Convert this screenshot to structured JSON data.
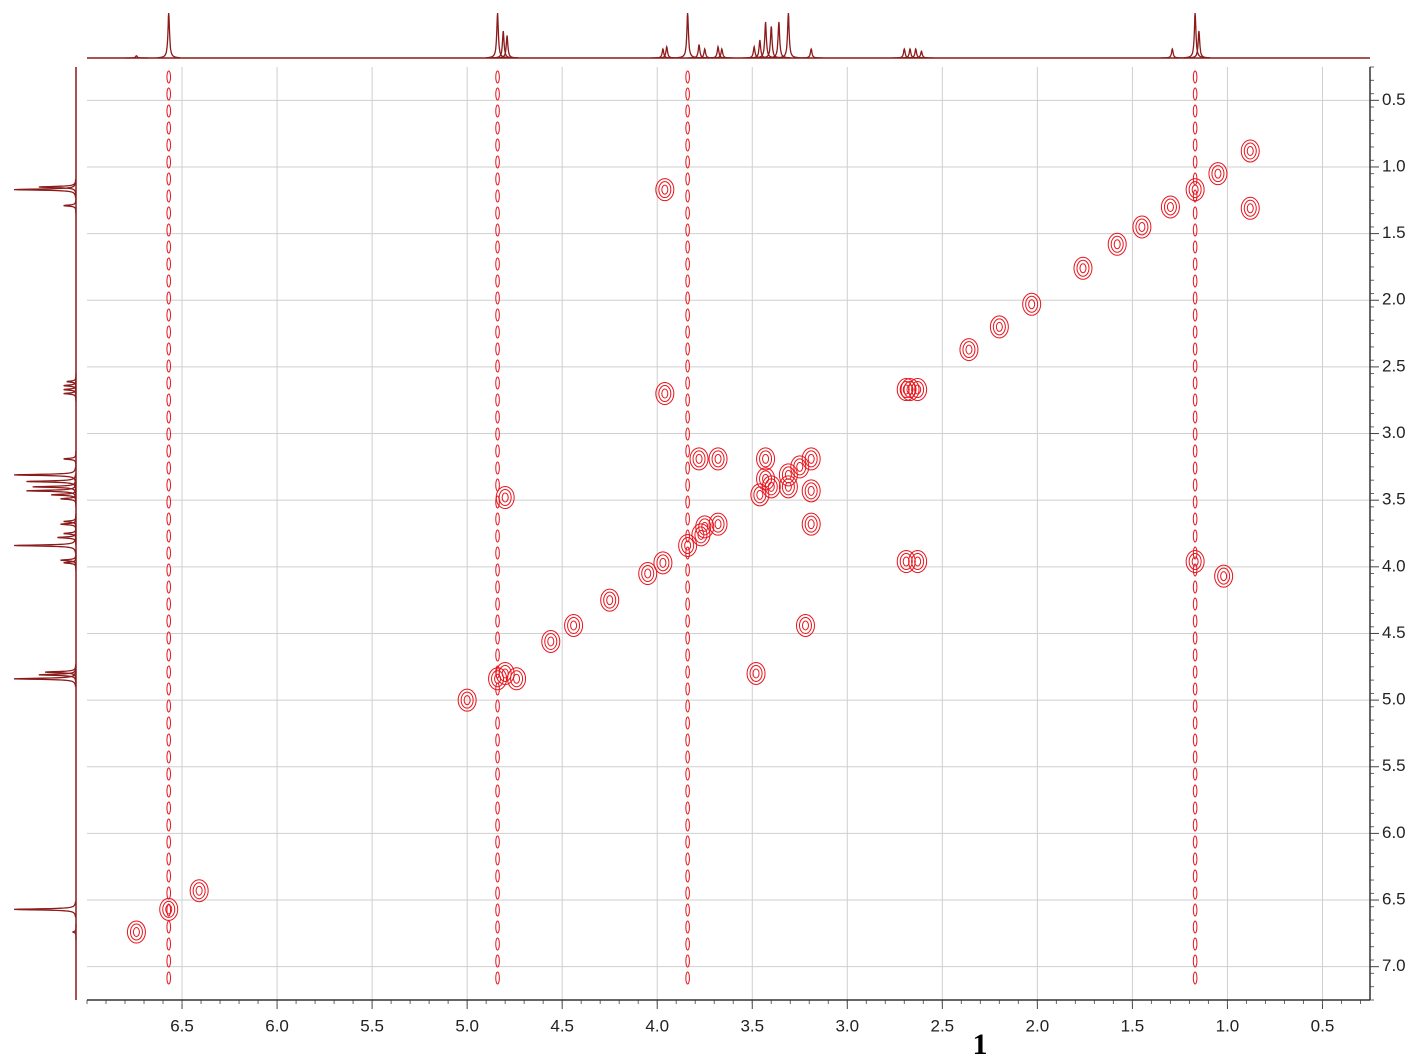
{
  "chart_data": {
    "type": "contour",
    "caption": "1",
    "xlim": [
      7.0,
      0.25
    ],
    "ylim": [
      0.25,
      7.25
    ],
    "xticks": [
      {
        "value": 6.5,
        "label": "6.5"
      },
      {
        "value": 6,
        "label": "6.0"
      },
      {
        "value": 5.5,
        "label": "5.5"
      },
      {
        "value": 5,
        "label": "5.0"
      },
      {
        "value": 4.5,
        "label": "4.5"
      },
      {
        "value": 4,
        "label": "4.0"
      },
      {
        "value": 3.5,
        "label": "3.5"
      },
      {
        "value": 3,
        "label": "3.0"
      },
      {
        "value": 2.5,
        "label": "2.5"
      },
      {
        "value": 2,
        "label": "2.0"
      },
      {
        "value": 1.5,
        "label": "1.5"
      },
      {
        "value": 1,
        "label": "1.0"
      },
      {
        "value": 0.5,
        "label": "0.5"
      }
    ],
    "yticks": [
      {
        "value": 0.5,
        "label": "0.5"
      },
      {
        "value": 1,
        "label": "1.0"
      },
      {
        "value": 1.5,
        "label": "1.5"
      },
      {
        "value": 2,
        "label": "2.0"
      },
      {
        "value": 2.5,
        "label": "2.5"
      },
      {
        "value": 3,
        "label": "3.0"
      },
      {
        "value": 3.5,
        "label": "3.5"
      },
      {
        "value": 4,
        "label": "4.0"
      },
      {
        "value": 4.5,
        "label": "4.5"
      },
      {
        "value": 5,
        "label": "5.0"
      },
      {
        "value": 5.5,
        "label": "5.5"
      },
      {
        "value": 6,
        "label": "6.0"
      },
      {
        "value": 6.5,
        "label": "6.5"
      },
      {
        "value": 7,
        "label": "7.0"
      }
    ],
    "grid": true,
    "color": "#e8141c",
    "projection_color": "#8b1a1a",
    "projection": {
      "x": [
        6.74,
        6.57,
        4.84,
        4.81,
        4.79,
        3.97,
        3.95,
        3.84,
        3.78,
        3.75,
        3.68,
        3.66,
        3.49,
        3.46,
        3.43,
        3.4,
        3.36,
        3.31,
        3.19,
        2.7,
        2.67,
        2.64,
        2.61,
        1.29,
        1.17,
        1.15
      ],
      "values": [
        0.05,
        1.0,
        1.0,
        0.6,
        0.5,
        0.2,
        0.25,
        1.0,
        0.3,
        0.2,
        0.25,
        0.2,
        0.25,
        0.4,
        0.8,
        0.7,
        0.8,
        1.0,
        0.2,
        0.2,
        0.2,
        0.2,
        0.15,
        0.2,
        1.0,
        0.6
      ]
    },
    "ridges": [
      6.57,
      4.84,
      3.84,
      1.17
    ],
    "peaks": {
      "x": [
        6.74,
        6.57,
        6.41,
        5.0,
        4.84,
        4.8,
        4.56,
        4.44,
        4.25,
        4.05,
        3.97,
        3.84,
        3.77,
        3.68,
        3.46,
        3.4,
        3.31,
        3.25,
        3.19,
        2.67,
        2.36,
        2.2,
        2.03,
        1.76,
        1.58,
        1.45,
        1.3,
        1.17,
        1.05,
        0.88,
        3.96,
        3.96,
        2.69,
        2.63,
        2.69,
        2.63,
        1.17,
        1.02,
        0.88,
        4.8,
        3.48,
        3.78,
        3.68,
        3.43,
        3.19,
        3.19,
        3.31,
        3.43,
        3.75,
        3.22,
        4.74
      ],
      "y": [
        6.74,
        6.57,
        6.43,
        5.0,
        4.84,
        4.8,
        4.56,
        4.44,
        4.25,
        4.05,
        3.97,
        3.84,
        3.76,
        3.68,
        3.46,
        3.4,
        3.31,
        3.25,
        3.19,
        2.67,
        2.37,
        2.2,
        2.03,
        1.76,
        1.58,
        1.45,
        1.3,
        1.17,
        1.05,
        0.88,
        1.17,
        2.7,
        2.67,
        2.67,
        3.96,
        3.96,
        3.96,
        4.07,
        1.31,
        3.48,
        4.8,
        3.19,
        3.19,
        3.19,
        3.43,
        3.68,
        3.4,
        3.34,
        3.7,
        4.44,
        4.84
      ]
    }
  }
}
